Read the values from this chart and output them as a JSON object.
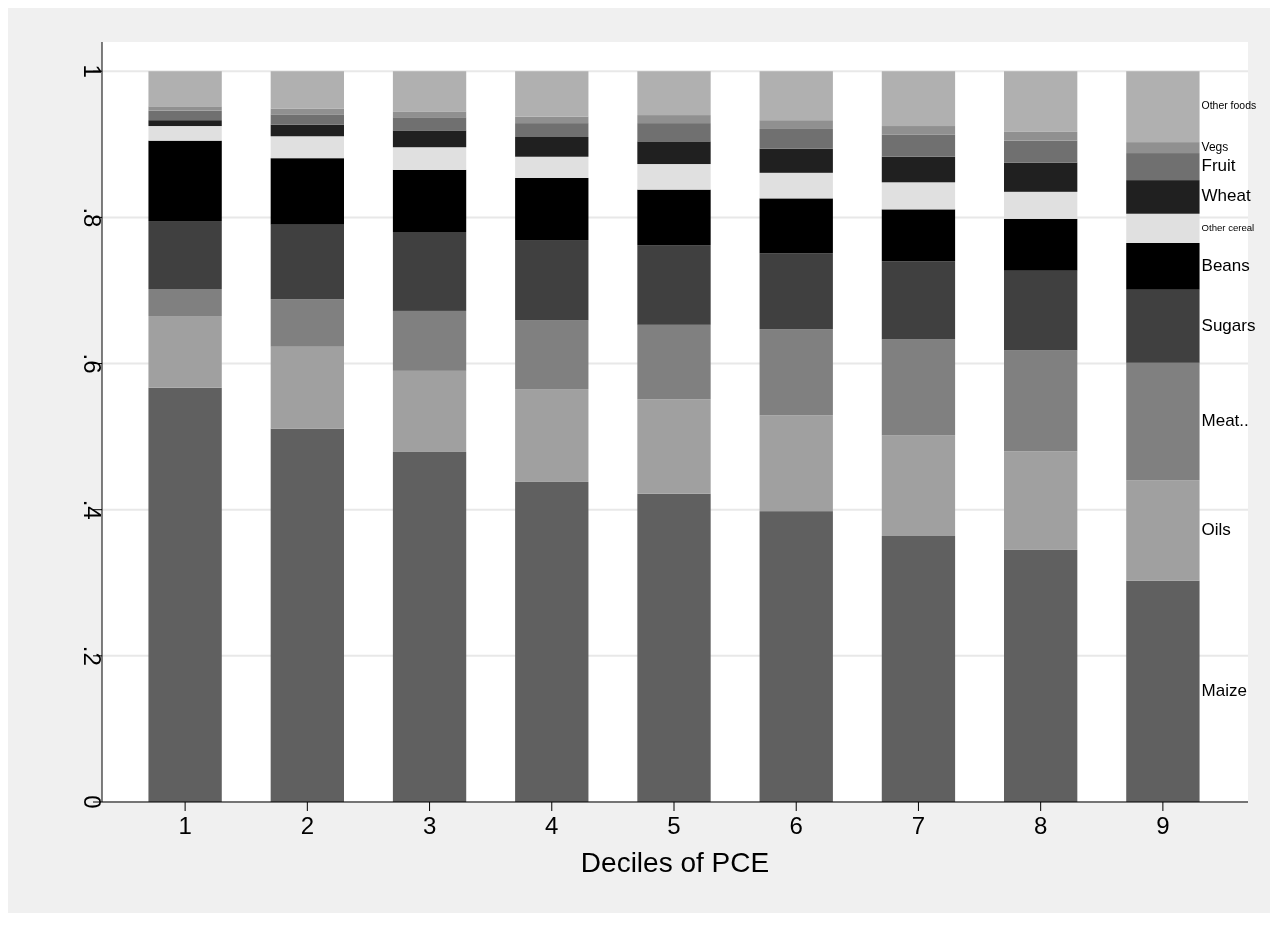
{
  "chart_data": {
    "type": "bar",
    "stacked": true,
    "xlabel": "Deciles of PCE",
    "categories": [
      "1",
      "2",
      "3",
      "4",
      "5",
      "6",
      "7",
      "8",
      "9"
    ],
    "ylim": [
      0,
      1.04
    ],
    "yticks": [
      0,
      {
        "value": 0.2,
        "label": ".2"
      },
      {
        "value": 0.4,
        "label": ".4"
      },
      {
        "value": 0.6,
        "label": ".6"
      },
      {
        "value": 0.8,
        "label": ".8"
      },
      1
    ],
    "grid": "y",
    "series": [
      {
        "name": "Maize",
        "color": "#606060",
        "values": [
          0.567,
          0.511,
          0.479,
          0.438,
          0.422,
          0.398,
          0.364,
          0.345,
          0.303
        ]
      },
      {
        "name": "Oils",
        "color": "#a0a0a0",
        "values": [
          0.098,
          0.112,
          0.111,
          0.127,
          0.129,
          0.131,
          0.138,
          0.135,
          0.137
        ]
      },
      {
        "name": "Meat..",
        "color": "#808080",
        "values": [
          0.037,
          0.065,
          0.082,
          0.094,
          0.102,
          0.118,
          0.131,
          0.138,
          0.161
        ]
      },
      {
        "name": "Sugars",
        "color": "#404040",
        "values": [
          0.093,
          0.102,
          0.108,
          0.11,
          0.109,
          0.104,
          0.107,
          0.109,
          0.1
        ]
      },
      {
        "name": "Beans",
        "color": "#000000",
        "values": [
          0.11,
          0.091,
          0.085,
          0.085,
          0.076,
          0.075,
          0.071,
          0.071,
          0.064
        ]
      },
      {
        "name": "Other cereal",
        "color": "#e0e0e0",
        "values": [
          0.02,
          0.03,
          0.031,
          0.029,
          0.035,
          0.035,
          0.037,
          0.037,
          0.04
        ]
      },
      {
        "name": "Wheat",
        "color": "#202020",
        "values": [
          0.008,
          0.016,
          0.023,
          0.027,
          0.031,
          0.033,
          0.035,
          0.04,
          0.046
        ]
      },
      {
        "name": "Fruit",
        "color": "#707070",
        "values": [
          0.013,
          0.014,
          0.018,
          0.019,
          0.025,
          0.027,
          0.03,
          0.03,
          0.037
        ]
      },
      {
        "name": "Vegs",
        "color": "#909090",
        "values": [
          0.006,
          0.008,
          0.008,
          0.009,
          0.011,
          0.012,
          0.012,
          0.012,
          0.015
        ]
      },
      {
        "name": "Other foods",
        "color": "#b0b0b0",
        "values": [
          0.048,
          0.051,
          0.055,
          0.062,
          0.06,
          0.067,
          0.075,
          0.083,
          0.097
        ]
      }
    ]
  }
}
